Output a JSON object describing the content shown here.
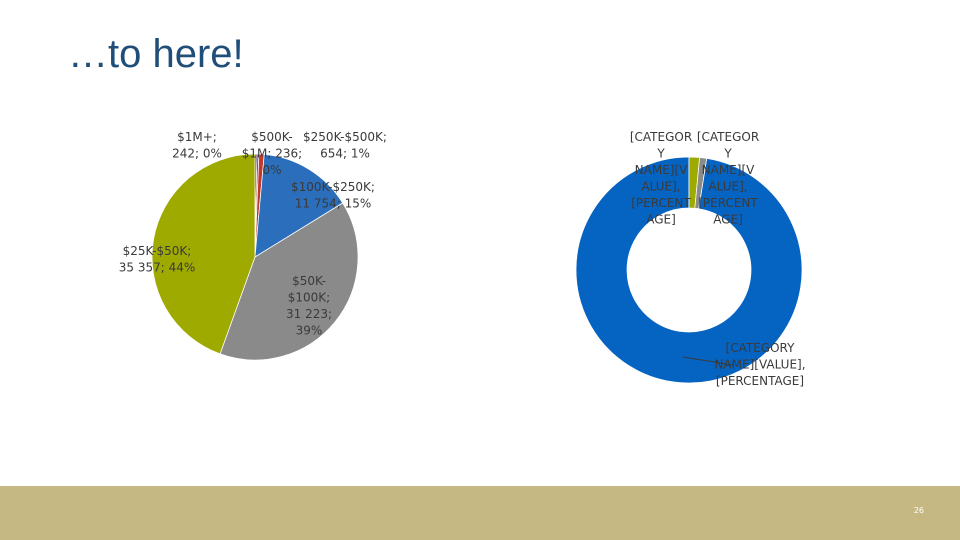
{
  "slide": {
    "title": "…to here!",
    "page_number": "26"
  },
  "colors": {
    "pie": [
      "#4f2a6b",
      "#7f4a1e",
      "#c0392b",
      "#2a6ebc",
      "#8a8a8a",
      "#9faa00"
    ],
    "donut": [
      "#0563c1",
      "#9faa00",
      "#8a8a8a"
    ],
    "footer": "#c5b883",
    "title": "#1f4e79"
  },
  "chart_data": [
    {
      "type": "pie",
      "series": [
        {
          "categories": [
            "$1M+",
            "$500K-$1M",
            "$250K-$500K",
            "$100K-$250K",
            "$50K-100K",
            "$25K-$50K"
          ],
          "values": [
            242,
            236,
            654,
            11754,
            31223,
            35357
          ],
          "labels": [
            [
              "$1M+;",
              "242; 0%"
            ],
            [
              "$500K-",
              "$1M; 236;",
              "0%"
            ],
            [
              "$250K-$500K;",
              "654; 1%"
            ],
            [
              "$100K-$250K;",
              "11 754; 15%"
            ],
            [
              "$50K-",
              "$100K;",
              "31 223;",
              "39%"
            ],
            [
              "$25K-$50K;",
              "35 357; 44%"
            ]
          ]
        }
      ]
    },
    {
      "type": "donut",
      "series": [
        {
          "values": [
            97.5,
            1.5,
            1.0
          ],
          "labels": [
            [
              "[CATEGORY",
              "NAME][VALUE],",
              "[PERCENTAGE]"
            ],
            [
              "[CATEGOR",
              "Y",
              "NAME][V",
              "ALUE],",
              "[PERCENT",
              "AGE]"
            ],
            [
              "[CATEGOR",
              "Y",
              "NAME][V",
              "ALUE],",
              "[PERCENT",
              "AGE]"
            ]
          ]
        }
      ]
    }
  ]
}
